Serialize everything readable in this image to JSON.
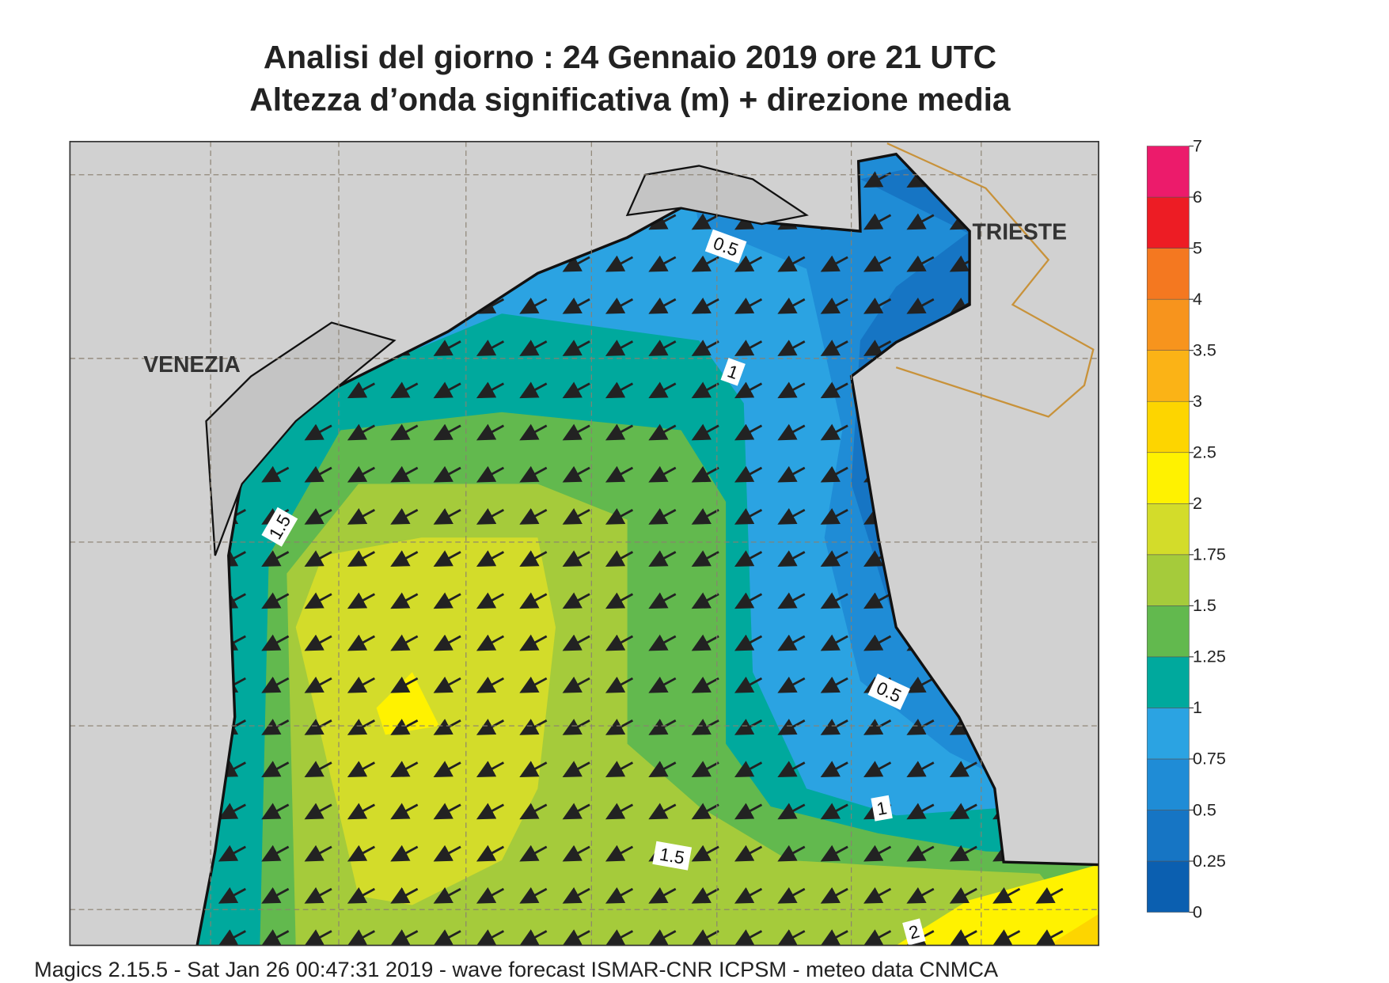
{
  "header": {
    "title": "Analisi del giorno :  24  Gennaio  2019   ore 21 UTC",
    "subtitle": "Altezza d’onda significativa (m) + direzione media"
  },
  "map": {
    "places": [
      "VENEZIA",
      "TRIESTE"
    ],
    "contour_labels": [
      "0.5",
      "1",
      "1.5",
      "0.5",
      "1",
      "1.5",
      "2"
    ]
  },
  "colorbar": {
    "levels": [
      0,
      0.25,
      0.5,
      0.75,
      1,
      1.25,
      1.5,
      1.75,
      2,
      2.5,
      3,
      3.5,
      4,
      5,
      6,
      7
    ],
    "colors": [
      "#0b5fb0",
      "#1675c4",
      "#1f8cd6",
      "#2ba3e2",
      "#00a99d",
      "#62b94e",
      "#a5cb3b",
      "#d3dc2a",
      "#fff200",
      "#fdd500",
      "#fbb316",
      "#f7941d",
      "#f47820",
      "#ed1c24",
      "#ec1b6b"
    ]
  },
  "footer": "Magics 2.15.5 - Sat Jan 26 00:47:31 2019 - wave forecast  ISMAR-CNR  ICPSM - meteo data   CNMCA"
}
